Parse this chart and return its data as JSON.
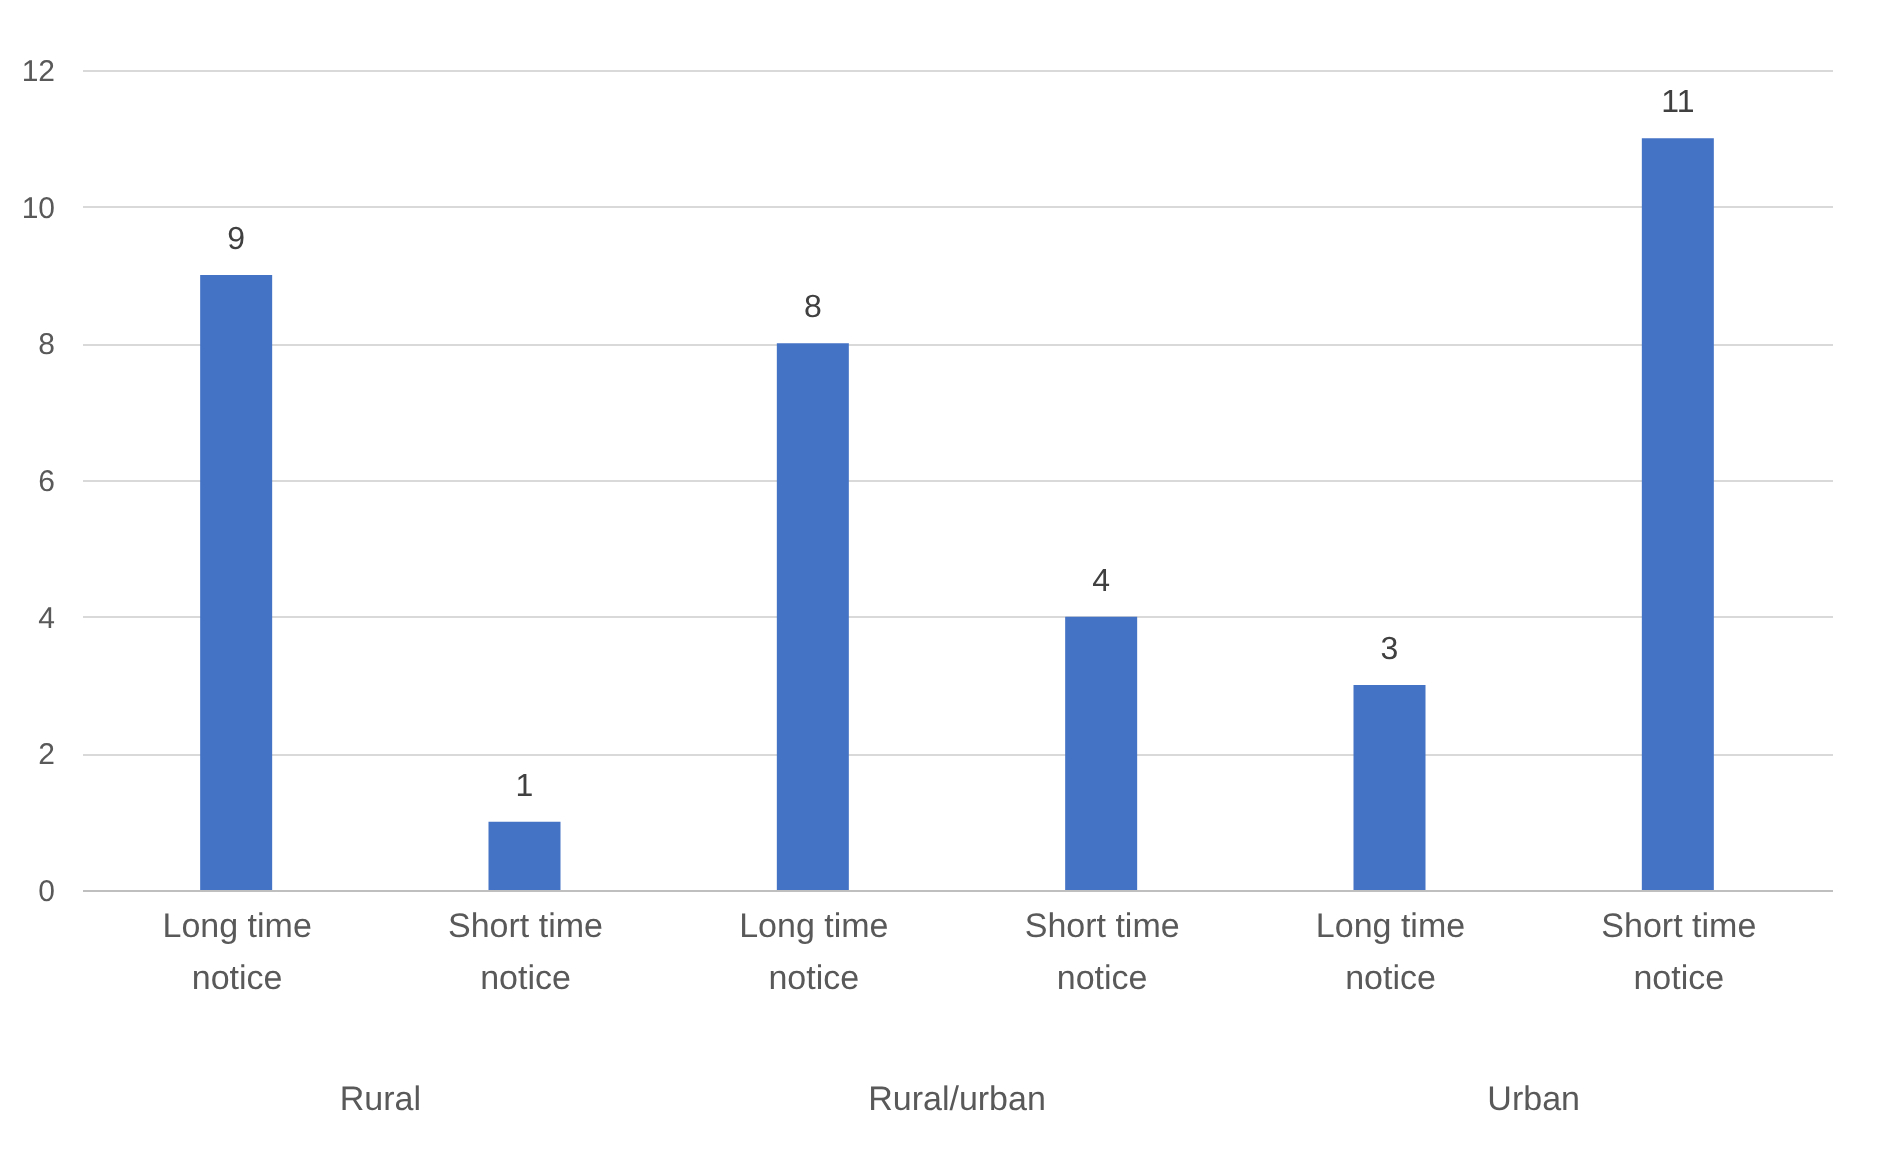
{
  "chart_data": {
    "type": "bar",
    "categories": [
      "Long time notice",
      "Short time notice",
      "Long time notice",
      "Short time notice",
      "Long time notice",
      "Short time notice"
    ],
    "values": [
      9,
      1,
      8,
      4,
      3,
      11
    ],
    "color": "#4472c4",
    "ylim": [
      0,
      12
    ],
    "yticks": [
      0,
      2,
      4,
      6,
      8,
      10,
      12
    ],
    "grid": "y",
    "data_labels": true,
    "annotations": [
      "Rural",
      "Rural/urban",
      "Urban"
    ]
  }
}
